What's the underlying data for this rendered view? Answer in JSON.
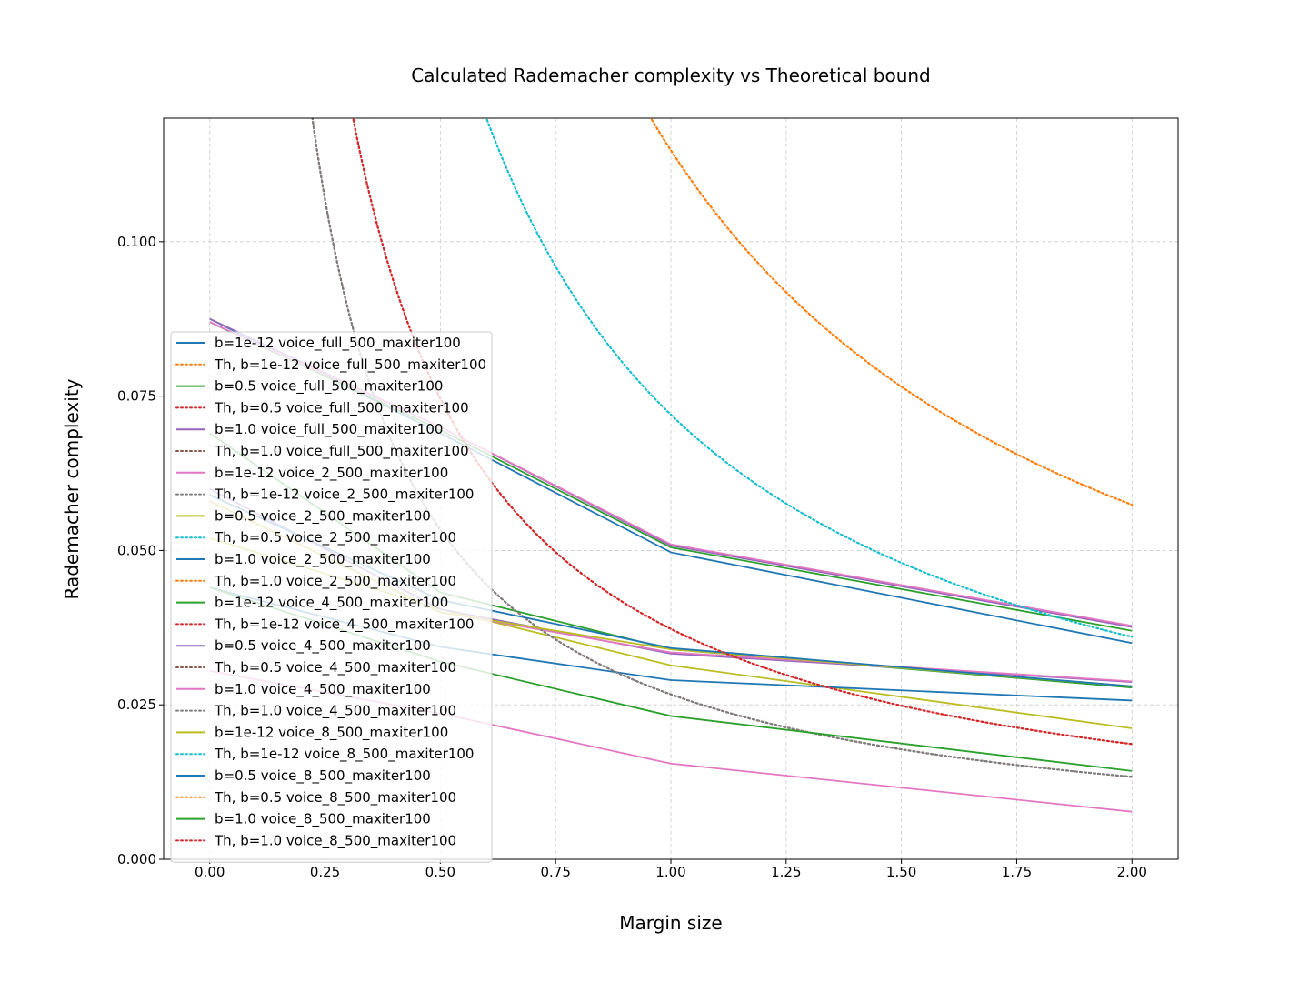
{
  "chart_data": {
    "type": "line",
    "title": "Calculated Rademacher complexity vs Theoretical bound",
    "xlabel": "Margin size",
    "ylabel": "Rademacher complexity",
    "xlim": [
      -0.1,
      2.1
    ],
    "ylim": [
      0.0,
      0.12
    ],
    "xticks": [
      0.0,
      0.25,
      0.5,
      0.75,
      1.0,
      1.25,
      1.5,
      1.75,
      2.0
    ],
    "xtick_labels": [
      "0.00",
      "0.25",
      "0.50",
      "0.75",
      "1.00",
      "1.25",
      "1.50",
      "1.75",
      "2.00"
    ],
    "yticks": [
      0.0,
      0.025,
      0.05,
      0.075,
      0.1
    ],
    "ytick_labels": [
      "0.000",
      "0.025",
      "0.050",
      "0.075",
      "0.100"
    ],
    "grid": true,
    "legend_position": "lower-left",
    "x": [
      0.0,
      0.5,
      1.0,
      2.0
    ],
    "series": [
      {
        "name": "b=1e-12 voice_full_500_maxiter100",
        "style": "solid",
        "color": "#1f77b4",
        "values": [
          0.0875,
          0.069,
          0.0497,
          0.035
        ]
      },
      {
        "name": "Th, b=1e-12 voice_full_500_maxiter100",
        "style": "dotted",
        "color": "#ff7f0e",
        "theoretical_c": 0.1148
      },
      {
        "name": "b=0.5 voice_full_500_maxiter100",
        "style": "solid",
        "color": "#2ca02c",
        "values": [
          0.087,
          0.0695,
          0.0505,
          0.037
        ]
      },
      {
        "name": "Th, b=0.5 voice_full_500_maxiter100",
        "style": "dotted",
        "color": "#d62728",
        "theoretical_c": 0.0373
      },
      {
        "name": "b=1.0 voice_full_500_maxiter100",
        "style": "solid",
        "color": "#9467bd",
        "values": [
          0.0875,
          0.07,
          0.0508,
          0.0376
        ]
      },
      {
        "name": "Th, b=1.0 voice_full_500_maxiter100",
        "style": "dotted",
        "color": "#8c564b",
        "theoretical_c": 0.0267
      },
      {
        "name": "b=1e-12 voice_2_500_maxiter100",
        "style": "solid",
        "color": "#e377c2",
        "values": [
          0.087,
          0.07,
          0.051,
          0.0378
        ]
      },
      {
        "name": "Th, b=1e-12 voice_2_500_maxiter100",
        "style": "dotted",
        "color": "#7f7f7f",
        "theoretical_c": 0.0267
      },
      {
        "name": "b=0.5 voice_2_500_maxiter100",
        "style": "solid",
        "color": "#bcbd22",
        "values": [
          0.052,
          0.0405,
          0.0314,
          0.0212
        ]
      },
      {
        "name": "Th, b=0.5 voice_2_500_maxiter100",
        "style": "dotted",
        "color": "#17becf",
        "theoretical_c": 0.072
      },
      {
        "name": "b=1.0 voice_2_500_maxiter100",
        "style": "solid",
        "color": "#1f77b4",
        "values": [
          0.044,
          0.0344,
          0.029,
          0.0257
        ]
      },
      {
        "name": "Th, b=1.0 voice_2_500_maxiter100",
        "style": "dotted",
        "color": "#ff7f0e",
        "theoretical_c": 0.1148
      },
      {
        "name": "b=1e-12 voice_4_500_maxiter100",
        "style": "solid",
        "color": "#2ca02c",
        "values": [
          0.069,
          0.0432,
          0.034,
          0.0278
        ]
      },
      {
        "name": "Th, b=1e-12 voice_4_500_maxiter100",
        "style": "dotted",
        "color": "#d62728",
        "theoretical_c": 0.0373
      },
      {
        "name": "b=0.5 voice_4_500_maxiter100",
        "style": "solid",
        "color": "#9467bd",
        "values": [
          0.06,
          0.0405,
          0.0333,
          0.0287
        ]
      },
      {
        "name": "Th, b=0.5 voice_4_500_maxiter100",
        "style": "dotted",
        "color": "#8c564b",
        "theoretical_c": 0.0267
      },
      {
        "name": "b=1.0 voice_4_500_maxiter100",
        "style": "solid",
        "color": "#e377c2",
        "values": [
          0.058,
          0.04,
          0.0335,
          0.0288
        ]
      },
      {
        "name": "Th, b=1.0 voice_4_500_maxiter100",
        "style": "dotted",
        "color": "#7f7f7f",
        "theoretical_c": 0.0267
      },
      {
        "name": "b=1e-12 voice_8_500_maxiter100",
        "style": "solid",
        "color": "#bcbd22",
        "values": [
          0.058,
          0.04,
          0.034,
          0.028
        ]
      },
      {
        "name": "Th, b=1e-12 voice_8_500_maxiter100",
        "style": "dotted",
        "color": "#17becf",
        "theoretical_c": 0.072
      },
      {
        "name": "b=0.5 voice_8_500_maxiter100",
        "style": "solid",
        "color": "#1f77b4",
        "values": [
          0.059,
          0.042,
          0.0342,
          0.028
        ]
      },
      {
        "name": "Th, b=0.5 voice_8_500_maxiter100",
        "style": "dotted",
        "color": "#ff7f0e",
        "theoretical_c": 0.1148
      },
      {
        "name": "b=1.0 voice_8_500_maxiter100",
        "style": "solid",
        "color": "#2ca02c",
        "values": [
          0.044,
          0.032,
          0.0232,
          0.0143
        ]
      },
      {
        "name": "Th, b=1.0 voice_8_500_maxiter100",
        "style": "dotted",
        "color": "#d62728",
        "theoretical_c": 0.0373
      },
      {
        "name": "",
        "style": "solid",
        "color": "#e377c2",
        "values": [
          0.0305,
          0.0236,
          0.0155,
          0.0077
        ]
      }
    ]
  }
}
